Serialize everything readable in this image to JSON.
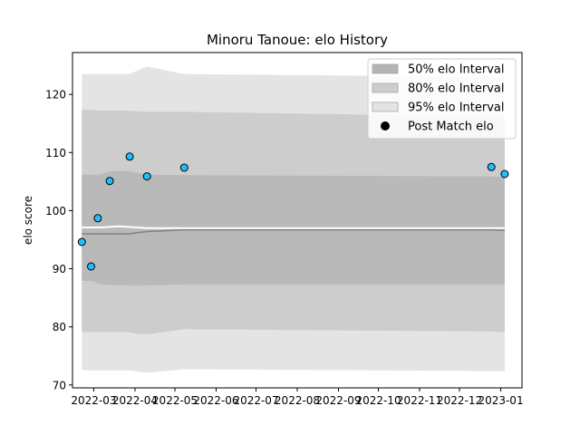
{
  "chart_data": {
    "type": "scatter",
    "title": "Minoru Tanoue: elo History",
    "xlabel": "",
    "ylabel": "elo score",
    "ylim": [
      69.5,
      127.2
    ],
    "xlim": [
      "2022-02-13",
      "2023-01-17"
    ],
    "yticks": [
      70,
      80,
      90,
      100,
      110,
      120
    ],
    "xticks": [
      "2022-03",
      "2022-04",
      "2022-05",
      "2022-06",
      "2022-07",
      "2022-08",
      "2022-09",
      "2022-10",
      "2022-11",
      "2022-12",
      "2023-01"
    ],
    "grid": false,
    "legend_position": "top-right",
    "legend": [
      {
        "label": "50% elo Interval",
        "color": "#b4b4b4",
        "kind": "band"
      },
      {
        "label": "80% elo Interval",
        "color": "#cdcdcd",
        "kind": "band"
      },
      {
        "label": "95% elo Interval",
        "color": "#e4e4e4",
        "kind": "band"
      },
      {
        "label": "Post Match elo",
        "color": "#000000",
        "kind": "marker"
      }
    ],
    "bands": {
      "x": [
        "2022-02-20",
        "2022-02-27",
        "2022-03-06",
        "2022-03-13",
        "2022-03-20",
        "2022-03-27",
        "2022-04-03",
        "2022-04-10",
        "2022-05-08",
        "2022-12-25",
        "2023-01-04"
      ],
      "p95_upper": [
        123.5,
        123.5,
        123.5,
        123.5,
        123.5,
        123.5,
        124.1,
        124.8,
        123.5,
        123.0,
        123.0
      ],
      "p80_upper": [
        117.4,
        117.3,
        117.2,
        117.2,
        117.2,
        117.2,
        117.1,
        117.0,
        117.0,
        116.2,
        116.2
      ],
      "p50_upper": [
        106.2,
        106.2,
        106.2,
        106.8,
        106.8,
        106.8,
        106.5,
        106.2,
        106.1,
        105.9,
        105.8
      ],
      "median": [
        96.0,
        96.0,
        96.0,
        96.0,
        96.0,
        96.0,
        96.2,
        96.4,
        96.7,
        96.7,
        96.6
      ],
      "p50_lower": [
        87.9,
        87.9,
        87.3,
        87.2,
        87.2,
        87.1,
        87.1,
        87.1,
        87.3,
        87.3,
        87.3
      ],
      "p80_lower": [
        79.1,
        79.1,
        79.1,
        79.1,
        79.1,
        79.1,
        78.8,
        78.7,
        79.6,
        79.2,
        79.1
      ],
      "p95_lower": [
        72.6,
        72.5,
        72.5,
        72.5,
        72.5,
        72.5,
        72.3,
        72.1,
        72.7,
        72.4,
        72.3
      ],
      "white_line": [
        97.1,
        97.1,
        97.1,
        97.2,
        97.3,
        97.2,
        97.1,
        97.0,
        97.0,
        97.0,
        97.0
      ]
    },
    "series": [
      {
        "name": "Post Match elo",
        "color": "#1fbfff",
        "points": [
          {
            "x": "2022-02-20",
            "y": 94.6
          },
          {
            "x": "2022-02-27",
            "y": 90.4
          },
          {
            "x": "2022-03-04",
            "y": 98.7
          },
          {
            "x": "2022-03-13",
            "y": 105.1
          },
          {
            "x": "2022-03-28",
            "y": 109.3
          },
          {
            "x": "2022-04-10",
            "y": 105.9
          },
          {
            "x": "2022-05-08",
            "y": 107.4
          },
          {
            "x": "2022-12-25",
            "y": 107.5
          },
          {
            "x": "2023-01-04",
            "y": 106.3
          }
        ]
      }
    ]
  }
}
